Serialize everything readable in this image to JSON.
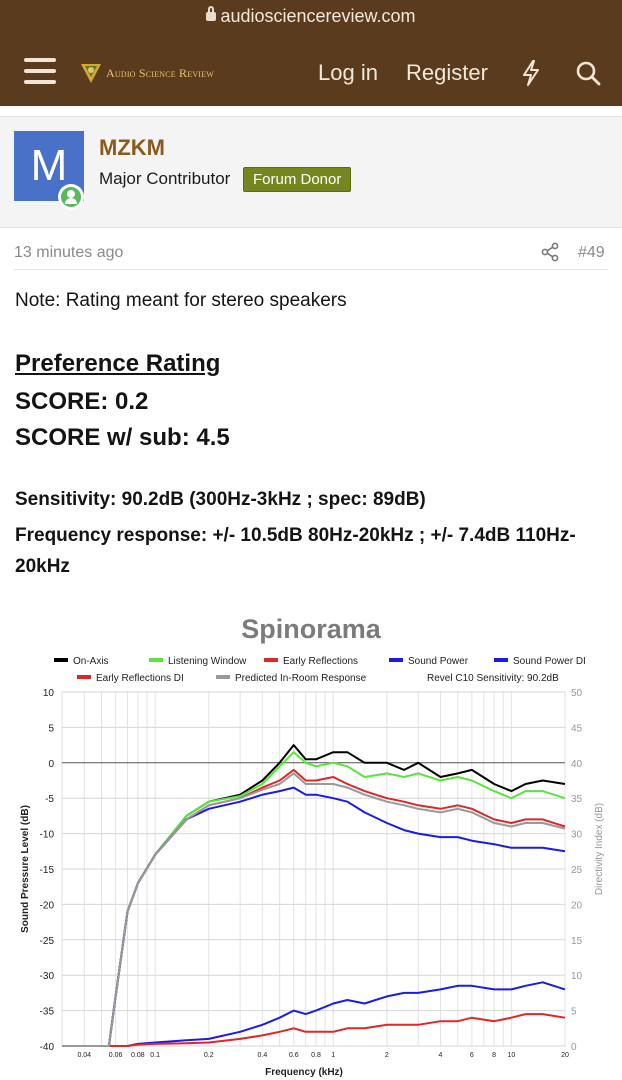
{
  "browser": {
    "url": "audiosciencereview.com"
  },
  "header": {
    "logo_text": "Audio Science Review",
    "login_label": "Log in",
    "register_label": "Register"
  },
  "author": {
    "avatar_letter": "M",
    "username": "MZKM",
    "title": "Major Contributor",
    "badge": "Forum Donor"
  },
  "post": {
    "time": "13 minutes ago",
    "number": "#49",
    "note": "Note: Rating meant for stereo speakers",
    "pref_title": "Preference Rating",
    "score": "SCORE: 0.2",
    "score_sub": "SCORE w/ sub: 4.5",
    "sensitivity": "Sensitivity: 90.2dB (300Hz-3kHz ; spec: 89dB)",
    "freq_response": "Frequency response: +/- 10.5dB 80Hz-20kHz ; +/- 7.4dB 110Hz-20kHz"
  },
  "colors": {
    "header_bg": "#5b3b1e",
    "username": "#8c5a1c",
    "badge_bg": "#76861e",
    "avatar_bg": "#4a71c8"
  },
  "chart_data": {
    "type": "line",
    "title": "Spinorama",
    "xlabel": "Frequency (kHz)",
    "ylabel": "Sound Pressure Level (dB)",
    "y2label": "Directivity Index (dB)",
    "x_scale": "log",
    "xlim": [
      0.03,
      20
    ],
    "ylim": [
      -40,
      10
    ],
    "y2lim": [
      0,
      50
    ],
    "x_ticks": [
      0.04,
      0.06,
      0.08,
      0.1,
      0.2,
      0.4,
      0.6,
      0.8,
      1,
      2,
      4,
      6,
      8,
      10,
      20
    ],
    "x_tick_labels": [
      "0.04",
      "0.06",
      "0.08",
      "0.1",
      "0.2",
      "0.4",
      "0.6",
      "0.8",
      "1",
      "2",
      "4",
      "6",
      "8",
      "10",
      "20"
    ],
    "y_ticks": [
      10,
      5,
      0,
      -5,
      -10,
      -15,
      -20,
      -25,
      -30,
      -35,
      -40
    ],
    "y2_ticks": [
      50,
      45,
      40,
      35,
      30,
      25,
      20,
      15,
      10,
      5,
      0
    ],
    "grid": true,
    "legend_placement": "top",
    "annotation": "Revel C10 Sensitivity: 90.2dB",
    "x": [
      0.03,
      0.05,
      0.055,
      0.06,
      0.07,
      0.08,
      0.1,
      0.15,
      0.2,
      0.3,
      0.4,
      0.5,
      0.6,
      0.7,
      0.8,
      1,
      1.2,
      1.5,
      2,
      2.5,
      3,
      4,
      5,
      6,
      8,
      10,
      12,
      15,
      20
    ],
    "series": [
      {
        "name": "On-Axis",
        "color": "#000000",
        "axis": "left",
        "values": [
          -40,
          -40,
          -40,
          -33,
          -21,
          -17,
          -13,
          -7.5,
          -5.5,
          -4.5,
          -2.5,
          0,
          2.5,
          0.5,
          0.5,
          1.5,
          1.5,
          0,
          0,
          -1,
          0,
          -2,
          -1.5,
          -1,
          -3,
          -4,
          -3,
          -2.5,
          -3
        ]
      },
      {
        "name": "Listening Window",
        "color": "#55e83a",
        "axis": "left",
        "values": [
          -40,
          -40,
          -40,
          -33,
          -21,
          -17,
          -13,
          -7.5,
          -5.5,
          -4.7,
          -3,
          -0.5,
          1.5,
          0,
          -0.5,
          0,
          -0.5,
          -2,
          -1.5,
          -2,
          -1.5,
          -2.5,
          -2,
          -2.5,
          -4,
          -5,
          -4,
          -4,
          -5
        ]
      },
      {
        "name": "Early Reflections",
        "color": "#e02626",
        "axis": "left",
        "values": [
          -40,
          -40,
          -40,
          -33,
          -21,
          -17,
          -13,
          -8,
          -6,
          -5,
          -3.5,
          -2.5,
          -1,
          -2.5,
          -2.5,
          -2,
          -3,
          -4,
          -5,
          -5.5,
          -6,
          -6.5,
          -6,
          -6.5,
          -8,
          -8.5,
          -8,
          -8,
          -9
        ]
      },
      {
        "name": "Sound Power",
        "color": "#1a1aeb",
        "axis": "left",
        "values": [
          -40,
          -40,
          -40,
          -33,
          -21,
          -17,
          -13,
          -8,
          -6.5,
          -5.5,
          -4.5,
          -4,
          -3.5,
          -4.5,
          -4.5,
          -5,
          -5.5,
          -7,
          -8.5,
          -9.5,
          -10,
          -10.5,
          -10.5,
          -11,
          -11.5,
          -12,
          -12,
          -12,
          -12.5
        ]
      },
      {
        "name": "Sound Power DI",
        "color": "#1a1aeb",
        "axis": "right",
        "values": [
          0,
          0,
          0,
          0,
          0,
          0.3,
          0.5,
          0.8,
          1,
          2,
          3,
          4,
          5,
          4.5,
          5,
          6,
          6.5,
          6,
          7,
          7.5,
          7.5,
          8,
          8.5,
          8.5,
          8,
          8,
          8.5,
          9,
          8
        ]
      },
      {
        "name": "Early Reflections DI",
        "color": "#e02626",
        "axis": "right",
        "values": [
          0,
          0,
          0,
          0,
          0,
          0.2,
          0.3,
          0.4,
          0.5,
          1,
          1.5,
          2,
          2.5,
          2,
          2,
          2,
          2.5,
          2.5,
          3,
          3,
          3,
          3.5,
          3.5,
          4,
          3.5,
          4,
          4.5,
          4.5,
          4
        ]
      },
      {
        "name": "Predicted In-Room Response",
        "color": "#999999",
        "axis": "left",
        "values": [
          -40,
          -40,
          -40,
          -33,
          -21,
          -17,
          -13,
          -8,
          -6,
          -5,
          -3.8,
          -3,
          -1.5,
          -3,
          -3,
          -3,
          -3.5,
          -4.5,
          -5.5,
          -6,
          -6.5,
          -7,
          -6.5,
          -7,
          -8.5,
          -9,
          -8.5,
          -8.5,
          -9.3
        ]
      }
    ]
  }
}
